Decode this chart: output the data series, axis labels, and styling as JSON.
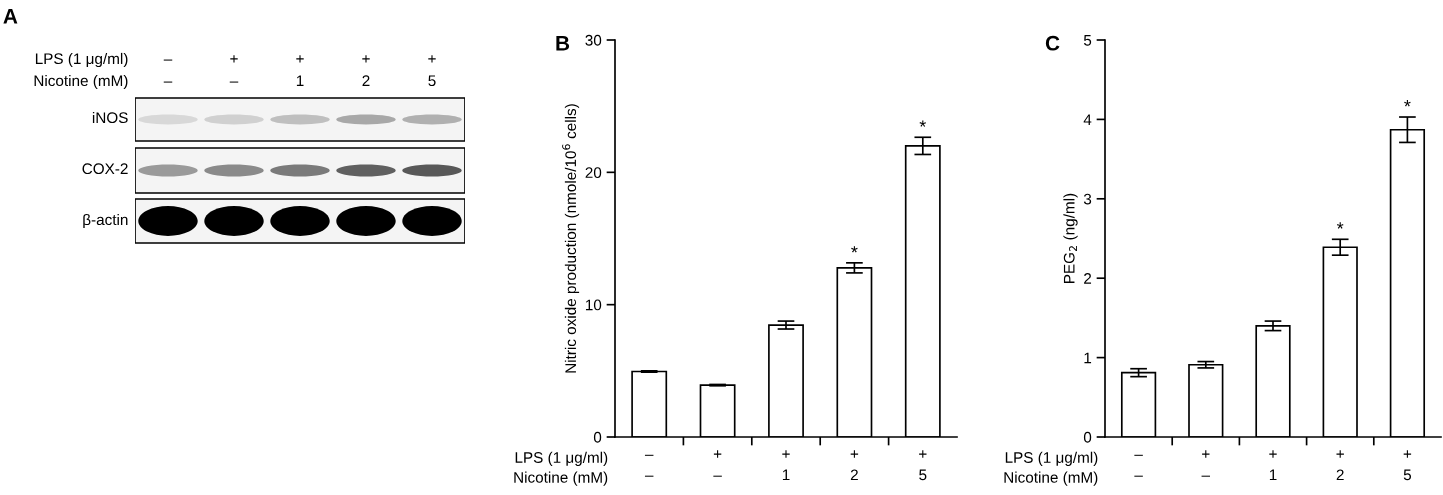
{
  "chart_data": [
    {
      "type": "other",
      "title": "A",
      "categories": [
        "–\n–",
        "+\n–",
        "+\n1",
        "+\n2",
        "+\n5"
      ],
      "annotations": [
        "LPS (1 μg/ml)",
        "Nicotine (mM)",
        "iNOS",
        "COX-2",
        "β-actin"
      ]
    },
    {
      "type": "bar",
      "title": "B",
      "ylabel": "Nitric oxide production (nmole/10$^{6}$ cells)",
      "categories": [
        "–\n–",
        "+\n–",
        "+\n1",
        "+\n2",
        "+\n5"
      ],
      "values": [
        4.95,
        3.92,
        8.46,
        12.78,
        22.0
      ],
      "errors": [
        0.05,
        0.05,
        0.3,
        0.38,
        0.65
      ],
      "color": "#ffffff",
      "ylim": [
        0,
        30
      ],
      "yticks": [
        0,
        10,
        20,
        30
      ],
      "grid": false,
      "annotations": [
        {
          "text": "*",
          "x": "+\n2",
          "y": 13.2
        },
        {
          "text": "*",
          "x": "+\n5",
          "y": 22.7
        },
        "LPS (1 μg/ml)",
        "Nicotine (mM)"
      ]
    },
    {
      "type": "bar",
      "title": "C",
      "ylabel": "PEG$_{2}$ (ng/ml)",
      "categories": [
        "–\n–",
        "+\n–",
        "+\n1",
        "+\n2",
        "+\n5"
      ],
      "values": [
        0.81,
        0.91,
        1.4,
        2.39,
        3.87
      ],
      "errors": [
        0.05,
        0.04,
        0.06,
        0.1,
        0.16
      ],
      "color": "#ffffff",
      "ylim": [
        0,
        5
      ],
      "yticks": [
        0,
        1,
        2,
        3,
        4,
        5
      ],
      "grid": false,
      "annotations": [
        {
          "text": "*",
          "x": "+\n2",
          "y": 2.5
        },
        {
          "text": "*",
          "x": "+\n5",
          "y": 4.04
        },
        "LPS (1 μg/ml)",
        "Nicotine (mM)"
      ]
    }
  ]
}
